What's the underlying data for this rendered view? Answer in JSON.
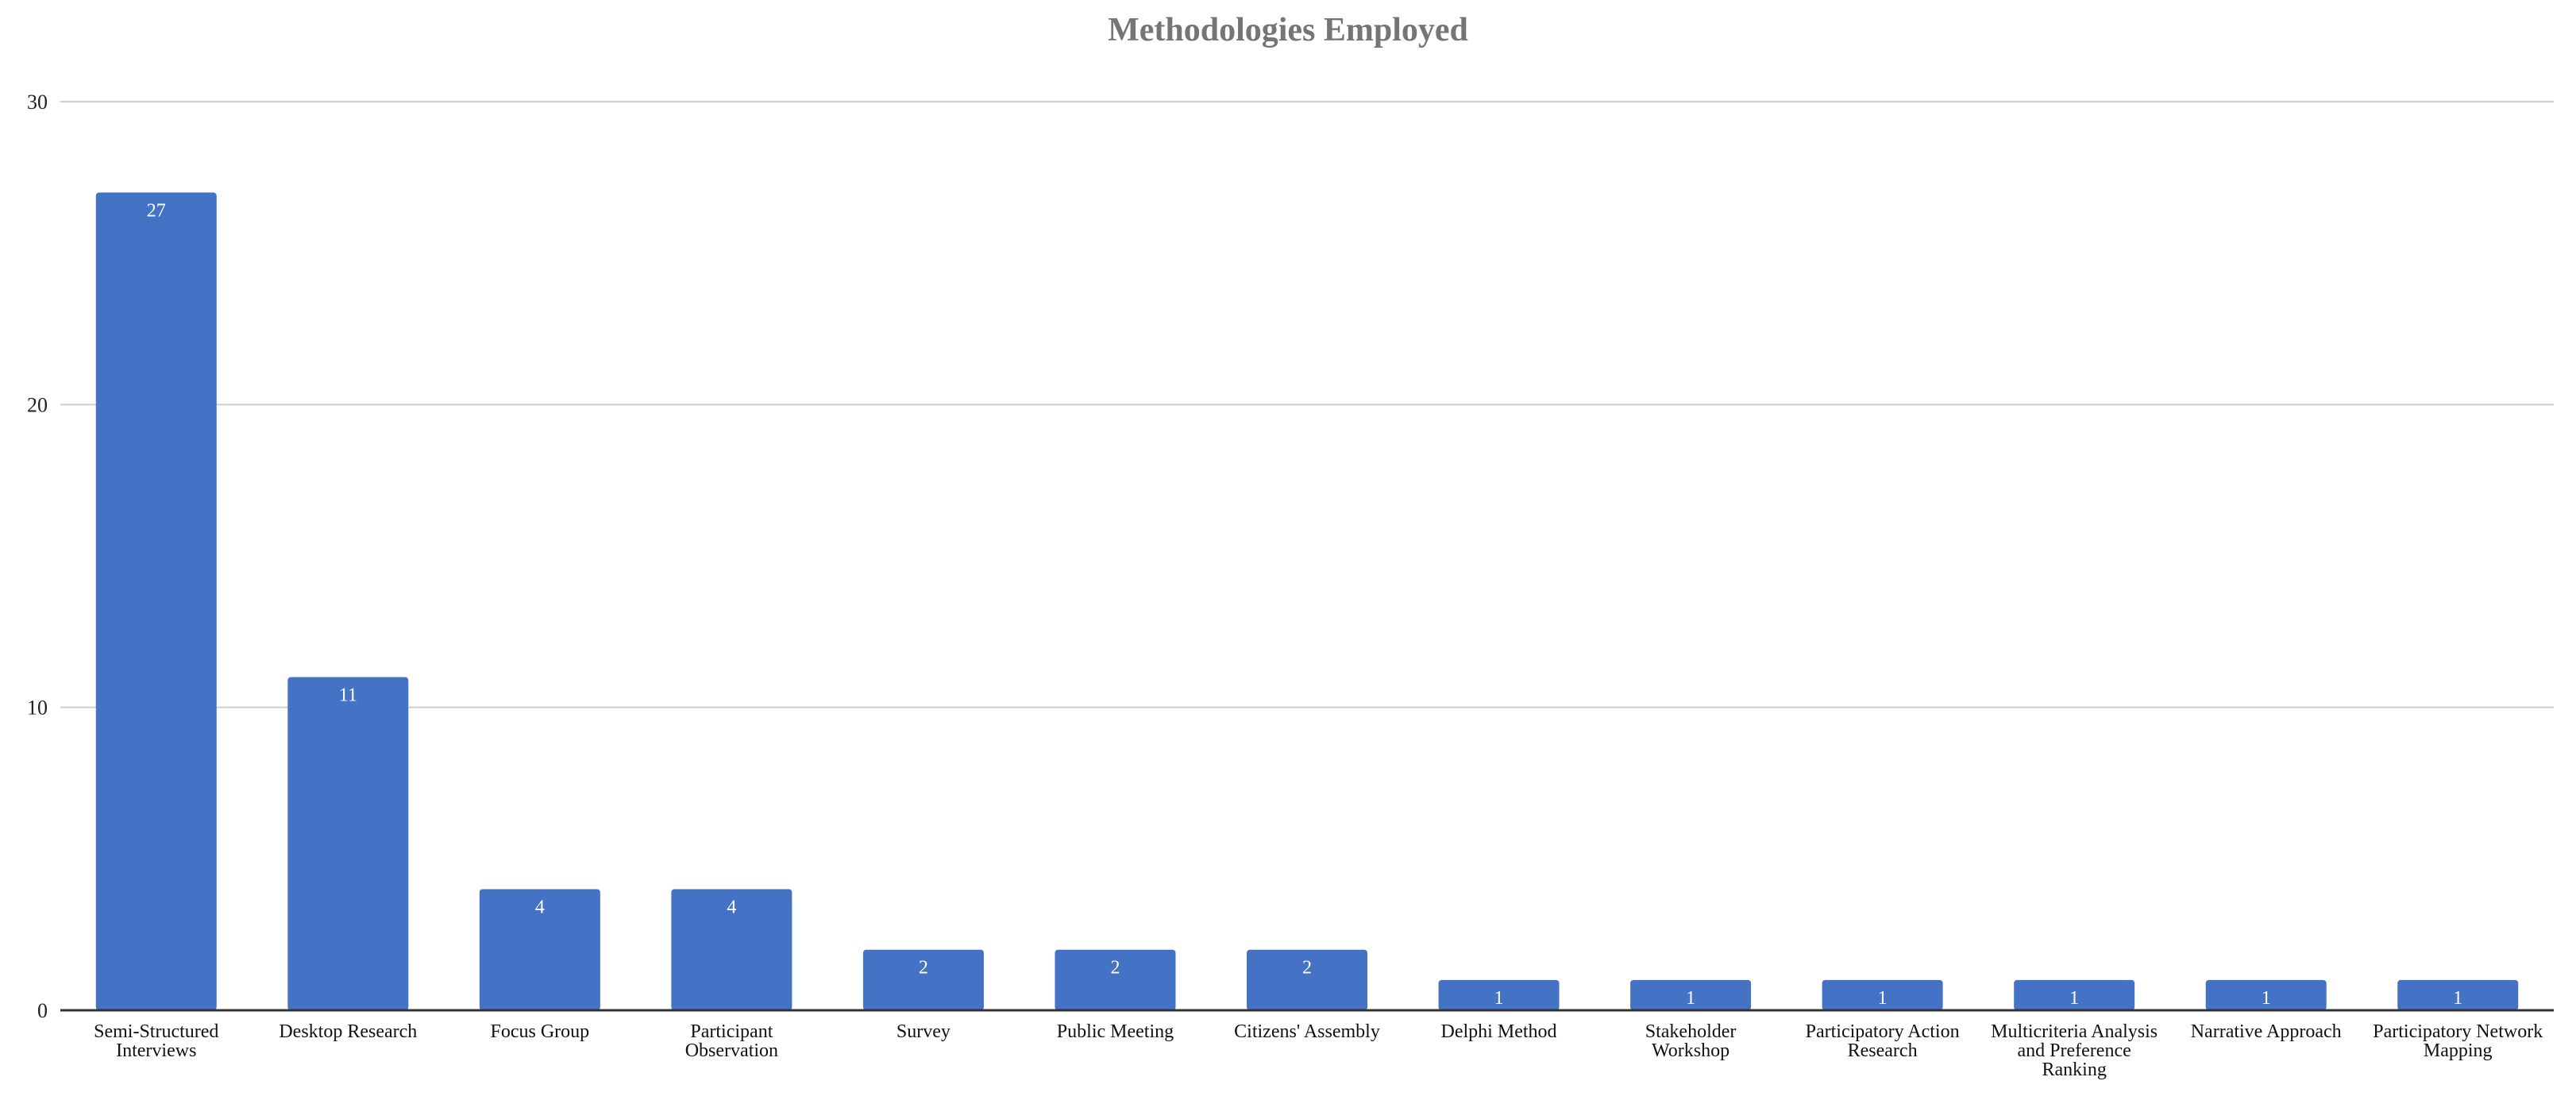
{
  "chart_data": {
    "type": "bar",
    "title": "Methodologies Employed",
    "xlabel": "",
    "ylabel": "",
    "ylim": [
      0,
      30
    ],
    "yticks": [
      0,
      10,
      20,
      30
    ],
    "grid": true,
    "bar_color": "#4472c4",
    "categories": [
      "Semi-Structured Interviews",
      "Desktop Research",
      "Focus Group",
      "Participant Observation",
      "Survey",
      "Public Meeting",
      "Citizens' Assembly",
      "Delphi Method",
      "Stakeholder Workshop",
      "Participatory Action Research",
      "Multicriteria Analysis and Preference Ranking",
      "Narrative Approach",
      "Participatory Network Mapping"
    ],
    "category_lines": [
      [
        "Semi-Structured",
        "Interviews"
      ],
      [
        "Desktop Research"
      ],
      [
        "Focus Group"
      ],
      [
        "Participant",
        "Observation"
      ],
      [
        "Survey"
      ],
      [
        "Public Meeting"
      ],
      [
        "Citizens' Assembly"
      ],
      [
        "Delphi Method"
      ],
      [
        "Stakeholder",
        "Workshop"
      ],
      [
        "Participatory Action",
        "Research"
      ],
      [
        "Multicriteria Analysis",
        "and Preference",
        "Ranking"
      ],
      [
        "Narrative Approach"
      ],
      [
        "Participatory Network",
        "Mapping"
      ]
    ],
    "values": [
      27,
      11,
      4,
      4,
      2,
      2,
      2,
      1,
      1,
      1,
      1,
      1,
      1
    ]
  }
}
